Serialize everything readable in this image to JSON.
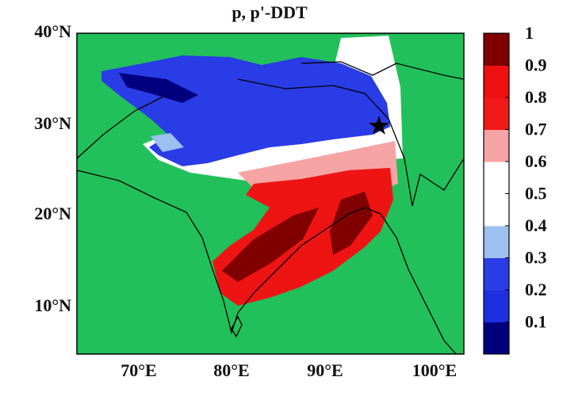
{
  "title": "p, p'-DDT",
  "lat_labels": [
    "40°N",
    "30°N",
    "20°N",
    "10°N"
  ],
  "lon_labels": [
    "70°E",
    "80°E",
    "90°E",
    "100°E"
  ],
  "colorbar": {
    "lim": [
      0,
      1
    ],
    "ticks": [
      1,
      0.9,
      0.8,
      0.7,
      0.6,
      0.5,
      0.4,
      0.3,
      0.2,
      0.1
    ],
    "colors": [
      "#00007f",
      "#1e2fe0",
      "#2a3ce6",
      "#9cc0f0",
      "#ffffff",
      "#ffffff",
      "#f5a3a3",
      "#f01818",
      "#ee1010",
      "#800000"
    ]
  }
}
